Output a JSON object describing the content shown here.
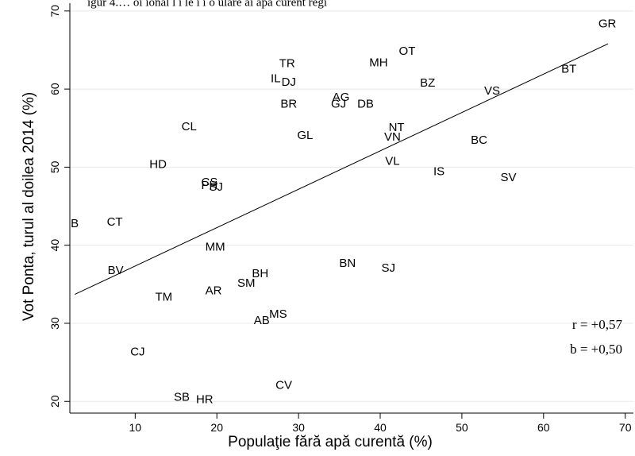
{
  "chart_data": {
    "type": "scatter",
    "top_caption": "igur 4.… oi ional l i le i  i  o ulare ai   apă curent   regi",
    "xlabel": "Populaţie fără apă curentă (%)",
    "ylabel": "Vot Ponta, turul al doilea 2014 (%)",
    "xlim": [
      2,
      71
    ],
    "ylim": [
      18.5,
      71
    ],
    "xticks": [
      10,
      20,
      30,
      40,
      50,
      60,
      70
    ],
    "yticks": [
      20,
      30,
      40,
      50,
      60,
      70
    ],
    "grid": "horizontal",
    "points": [
      {
        "label": "GR",
        "x": 67.8,
        "y": 68.3
      },
      {
        "label": "OT",
        "x": 43.3,
        "y": 64.8
      },
      {
        "label": "MH",
        "x": 39.8,
        "y": 63.3
      },
      {
        "label": "TR",
        "x": 28.6,
        "y": 63.2
      },
      {
        "label": "BT",
        "x": 63.1,
        "y": 62.5
      },
      {
        "label": "IL",
        "x": 27.2,
        "y": 61.3
      },
      {
        "label": "DJ",
        "x": 28.8,
        "y": 60.8
      },
      {
        "label": "BZ",
        "x": 45.8,
        "y": 60.7
      },
      {
        "label": "VS",
        "x": 53.7,
        "y": 59.7
      },
      {
        "label": "AG",
        "x": 35.2,
        "y": 58.9
      },
      {
        "label": "GJ",
        "x": 34.9,
        "y": 58.0
      },
      {
        "label": "DB",
        "x": 38.2,
        "y": 58.0
      },
      {
        "label": "BR",
        "x": 28.8,
        "y": 58.0
      },
      {
        "label": "CL",
        "x": 16.6,
        "y": 55.1
      },
      {
        "label": "NT",
        "x": 42.0,
        "y": 55.0
      },
      {
        "label": "GL",
        "x": 30.8,
        "y": 54.0
      },
      {
        "label": "VN",
        "x": 41.5,
        "y": 53.8
      },
      {
        "label": "BC",
        "x": 52.1,
        "y": 53.4
      },
      {
        "label": "HD",
        "x": 12.8,
        "y": 50.3
      },
      {
        "label": "VL",
        "x": 41.5,
        "y": 50.7
      },
      {
        "label": "IS",
        "x": 47.2,
        "y": 49.4
      },
      {
        "label": "SV",
        "x": 55.7,
        "y": 48.6
      },
      {
        "label": "CS",
        "x": 19.1,
        "y": 48.0
      },
      {
        "label": "PH",
        "x": 19.1,
        "y": 47.6
      },
      {
        "label": "SJ",
        "x": 19.9,
        "y": 47.4
      },
      {
        "label": "B",
        "x": 2.6,
        "y": 42.7
      },
      {
        "label": "CT",
        "x": 7.5,
        "y": 42.9
      },
      {
        "label": "MM",
        "x": 19.8,
        "y": 39.7
      },
      {
        "label": "BN",
        "x": 36.0,
        "y": 37.6
      },
      {
        "label": "SJ",
        "x": 41.0,
        "y": 37.0
      },
      {
        "label": "BV",
        "x": 7.6,
        "y": 36.7
      },
      {
        "label": "BH",
        "x": 25.3,
        "y": 36.3
      },
      {
        "label": "SM",
        "x": 23.6,
        "y": 35.1
      },
      {
        "label": "AR",
        "x": 19.6,
        "y": 34.1
      },
      {
        "label": "TM",
        "x": 13.5,
        "y": 33.3
      },
      {
        "label": "MS",
        "x": 27.5,
        "y": 31.1
      },
      {
        "label": "AB",
        "x": 25.5,
        "y": 30.3
      },
      {
        "label": "CJ",
        "x": 10.3,
        "y": 26.3
      },
      {
        "label": "CV",
        "x": 28.2,
        "y": 22.0
      },
      {
        "label": "SB",
        "x": 15.7,
        "y": 20.5
      },
      {
        "label": "HR",
        "x": 18.5,
        "y": 20.2
      }
    ],
    "fit_line": {
      "x": [
        2.6,
        67.9
      ],
      "y": [
        33.7,
        65.8
      ]
    },
    "stats": [
      "r = +0,57",
      "b = +0,50"
    ]
  }
}
